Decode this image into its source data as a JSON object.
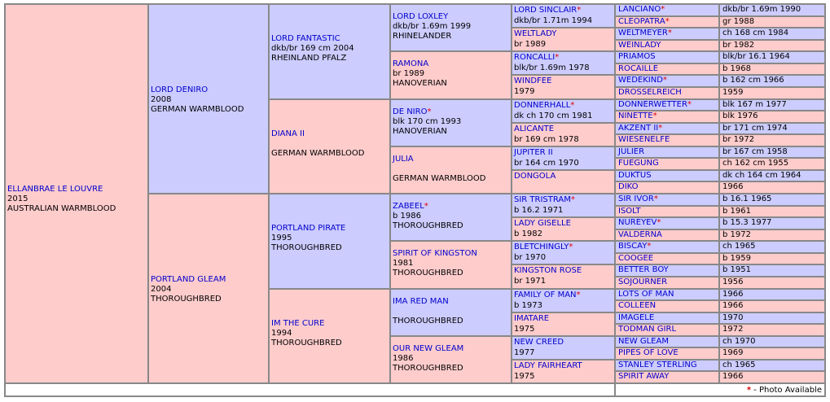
{
  "photo_mark": "*",
  "footer_text": "- Photo Available",
  "gen1": [
    {
      "name": "ELLANBRAE LE LOUVRE",
      "l2": "2015",
      "breed": "AUSTRALIAN WARMBLOOD",
      "photo": false
    }
  ],
  "gen2": [
    {
      "name": "LORD DENIRO",
      "l2": "2008",
      "breed": "GERMAN WARMBLOOD",
      "photo": false
    },
    {
      "name": "PORTLAND GLEAM",
      "l2": "2004",
      "breed": "THOROUGHBRED",
      "photo": false
    }
  ],
  "gen3": [
    {
      "name": "LORD FANTASTIC",
      "l2": "dkb/br 169 cm 2004",
      "breed": "RHEINLAND PFALZ",
      "photo": false
    },
    {
      "name": "DIANA II",
      "l2": "",
      "breed": "GERMAN WARMBLOOD",
      "photo": false
    },
    {
      "name": "PORTLAND PIRATE",
      "l2": "1995",
      "breed": "THOROUGHBRED",
      "photo": false
    },
    {
      "name": "IM THE CURE",
      "l2": "1994",
      "breed": "THOROUGHBRED",
      "photo": false
    }
  ],
  "gen4": [
    {
      "name": "LORD LOXLEY",
      "l2": "dkb/br 1.69m 1999",
      "breed": "RHINELANDER",
      "photo": false
    },
    {
      "name": "RAMONA",
      "l2": "br 1989",
      "breed": "HANOVERIAN",
      "photo": false
    },
    {
      "name": "DE NIRO",
      "l2": "blk 170 cm 1993",
      "breed": "HANOVERIAN",
      "photo": true
    },
    {
      "name": "JULIA",
      "l2": "",
      "breed": "GERMAN WARMBLOOD",
      "photo": false
    },
    {
      "name": "ZABEEL",
      "l2": "b 1986",
      "breed": "THOROUGHBRED",
      "photo": true
    },
    {
      "name": "SPIRIT OF KINGSTON",
      "l2": "1981",
      "breed": "THOROUGHBRED",
      "photo": false
    },
    {
      "name": "IMA RED MAN",
      "l2": "",
      "breed": "THOROUGHBRED",
      "photo": false
    },
    {
      "name": "OUR NEW GLEAM",
      "l2": "1986",
      "breed": "THOROUGHBRED",
      "photo": false
    }
  ],
  "gen5": [
    {
      "name": "LORD SINCLAIR",
      "info": "dkb/br 1.71m 1994",
      "photo": true
    },
    {
      "name": "WELTLADY",
      "info": "br 1989",
      "photo": false
    },
    {
      "name": "RONCALLI",
      "info": "blk/br 1.69m 1978",
      "photo": true
    },
    {
      "name": "WINDFEE",
      "info": "1979",
      "photo": false
    },
    {
      "name": "DONNERHALL",
      "info": "dk ch 170 cm 1981",
      "photo": true
    },
    {
      "name": "ALICANTE",
      "info": "br 169 cm 1978",
      "photo": false
    },
    {
      "name": "JUPITER II",
      "info": "br 164 cm 1970",
      "photo": false
    },
    {
      "name": "DONGOLA",
      "info": "",
      "photo": false
    },
    {
      "name": "SIR TRISTRAM",
      "info": "b 16.2 1971",
      "photo": true
    },
    {
      "name": "LADY GISELLE",
      "info": "b 1982",
      "photo": false
    },
    {
      "name": "BLETCHINGLY",
      "info": "br 1970",
      "photo": true
    },
    {
      "name": "KINGSTON ROSE",
      "info": "br 1971",
      "photo": false
    },
    {
      "name": "FAMILY OF MAN",
      "info": "b 1973",
      "photo": true
    },
    {
      "name": "IMATARE",
      "info": "1975",
      "photo": false
    },
    {
      "name": "NEW CREED",
      "info": "1977",
      "photo": false
    },
    {
      "name": "LADY FAIRHEART",
      "info": "1975",
      "photo": false
    }
  ],
  "gen6": [
    {
      "name": "LANCIANO",
      "info": "dkb/br 1.69m 1990",
      "photo": true
    },
    {
      "name": "CLEOPATRA",
      "info": "gr 1988",
      "photo": true
    },
    {
      "name": "WELTMEYER",
      "info": "ch 168 cm 1984",
      "photo": true
    },
    {
      "name": "WEINLADY",
      "info": "br 1982",
      "photo": false
    },
    {
      "name": "PRIAMOS",
      "info": "blk/br 16.1 1964",
      "photo": false
    },
    {
      "name": "ROCAILLE",
      "info": "b 1968",
      "photo": false
    },
    {
      "name": "WEDEKIND",
      "info": "b 162 cm 1966",
      "photo": true
    },
    {
      "name": "DROSSELREICH",
      "info": "1959",
      "photo": false
    },
    {
      "name": "DONNERWETTER",
      "info": "blk 167 m 1977",
      "photo": true
    },
    {
      "name": "NINETTE",
      "info": "blk 1976",
      "photo": true
    },
    {
      "name": "AKZENT II",
      "info": "br 171 cm 1974",
      "photo": true
    },
    {
      "name": "WIESENELFE",
      "info": "br 1972",
      "photo": false
    },
    {
      "name": "JULIER",
      "info": "br 167 cm 1958",
      "photo": false
    },
    {
      "name": "FUEGUNG",
      "info": "ch 162 cm 1955",
      "photo": false
    },
    {
      "name": "DUKTUS",
      "info": "dk ch 164 cm 1964",
      "photo": false
    },
    {
      "name": "DIKO",
      "info": "1966",
      "photo": false
    },
    {
      "name": "SIR IVOR",
      "info": "b 16.1 1965",
      "photo": true
    },
    {
      "name": "ISOLT",
      "info": "b 1961",
      "photo": false
    },
    {
      "name": "NUREYEV",
      "info": "b 15.3 1977",
      "photo": true
    },
    {
      "name": "VALDERNA",
      "info": "b 1972",
      "photo": false
    },
    {
      "name": "BISCAY",
      "info": "ch 1965",
      "photo": true
    },
    {
      "name": "COOGEE",
      "info": "b 1959",
      "photo": false
    },
    {
      "name": "BETTER BOY",
      "info": "b 1951",
      "photo": false
    },
    {
      "name": "SOJOURNER",
      "info": "1956",
      "photo": false
    },
    {
      "name": "LOTS OF MAN",
      "info": "1966",
      "photo": false
    },
    {
      "name": "COLLEEN",
      "info": "1966",
      "photo": false
    },
    {
      "name": "IMAGELE",
      "info": "1970",
      "photo": false
    },
    {
      "name": "TODMAN GIRL",
      "info": "1972",
      "photo": false
    },
    {
      "name": "NEW GLEAM",
      "info": "ch 1970",
      "photo": false
    },
    {
      "name": "PIPES OF LOVE",
      "info": "1969",
      "photo": false
    },
    {
      "name": "STANLEY STERLING",
      "info": "ch 1965",
      "photo": false
    },
    {
      "name": "SPIRIT AWAY",
      "info": "1966",
      "photo": false
    }
  ]
}
